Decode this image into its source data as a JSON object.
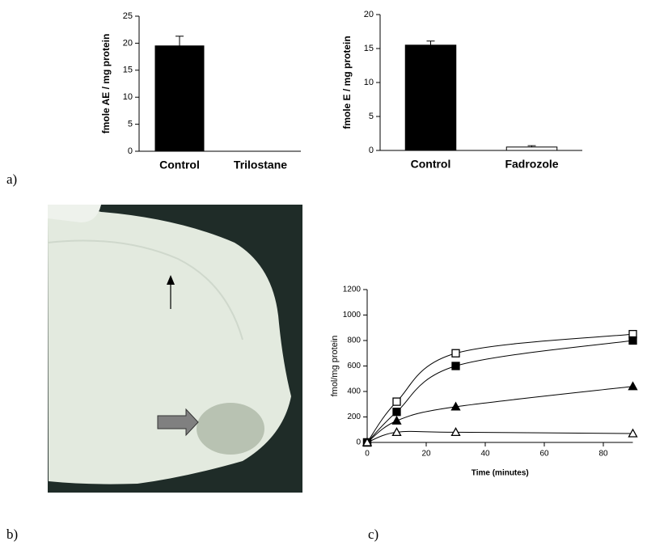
{
  "panel_labels": [
    "a)",
    "b)",
    "c)"
  ],
  "chart_data": [
    {
      "type": "bar",
      "y_label": "fmole AE / mg protein",
      "categories": [
        "Control",
        "Trilostane"
      ],
      "values": [
        19.5,
        0
      ],
      "errors": [
        1.8,
        0
      ],
      "colors": [
        "#000000",
        "#ffffff"
      ],
      "ylim": [
        0,
        25
      ],
      "yticks": [
        0,
        5,
        10,
        15,
        20,
        25
      ]
    },
    {
      "type": "bar",
      "y_label": "fmole E / mg protein",
      "categories": [
        "Control",
        "Fadrozole"
      ],
      "values": [
        15.5,
        0.5
      ],
      "errors": [
        0.6,
        0.2
      ],
      "colors": [
        "#000000",
        "#ffffff"
      ],
      "ylim": [
        0,
        20
      ],
      "yticks": [
        0,
        5,
        10,
        15,
        20
      ]
    },
    {
      "type": "scatter",
      "x_label": "Time (minutes)",
      "y_label": "fmol/mg protein",
      "x": [
        0,
        10,
        30,
        90
      ],
      "series": [
        {
          "marker": "open-square",
          "color": "#000000",
          "values": [
            0,
            320,
            700,
            850
          ]
        },
        {
          "marker": "filled-square",
          "color": "#000000",
          "values": [
            0,
            240,
            600,
            800
          ]
        },
        {
          "marker": "filled-triangle",
          "color": "#000000",
          "values": [
            0,
            170,
            280,
            440
          ]
        },
        {
          "marker": "open-triangle",
          "color": "#000000",
          "values": [
            0,
            80,
            80,
            70
          ]
        }
      ],
      "xlim": [
        0,
        90
      ],
      "xticks": [
        0,
        20,
        40,
        60,
        80
      ],
      "ylim": [
        0,
        1200
      ],
      "yticks": [
        0,
        200,
        400,
        600,
        800,
        1000,
        1200
      ]
    }
  ]
}
